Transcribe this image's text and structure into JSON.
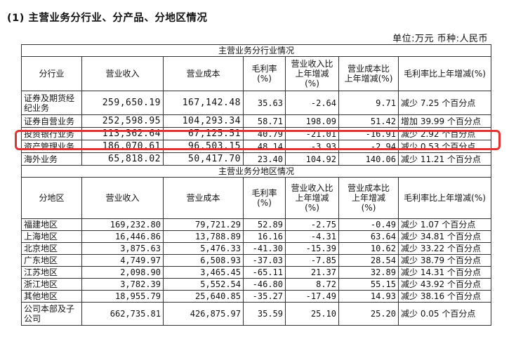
{
  "heading": "(1) 主营业务分行业、分产品、分地区情况",
  "unit_line": "单位:万元  币种:人民币",
  "industry": {
    "section_title": "主营业务分行业情况",
    "headers": [
      "分行业",
      "营业收入",
      "营业成本",
      "毛利率\n(%)",
      "营业收入比\n上年增减\n(%)",
      "营业成本比\n上年增减(%)",
      "毛利率比上年增减(%)"
    ],
    "rows": [
      [
        "证券及期货经纪业务",
        "259,650.19",
        "167,142.48",
        "35.63",
        "-2.64",
        "9.71",
        "减少 7.25 个百分点"
      ],
      [
        "证券自营业务",
        "252,598.95",
        "104,293.34",
        "58.71",
        "198.09",
        "51.42",
        "增加 39.99 个百分点"
      ],
      [
        "投资银行业务",
        "113,362.64",
        "67,125.51",
        "40.79",
        "-21.01",
        "-16.91",
        "减少 2.92 个百分点"
      ],
      [
        "资产管理业务",
        "186,070.61",
        "96,503.15",
        "48.14",
        "-3.93",
        "-2.94",
        "减少 0.53 个百分点"
      ],
      [
        "海外业务",
        "65,818.02",
        "50,417.70",
        "23.40",
        "104.92",
        "140.06",
        "减少 11.21 个百分点"
      ]
    ]
  },
  "region": {
    "section_title": "主营业务分地区情况",
    "headers": [
      "分地区",
      "营业收入",
      "营业成本",
      "毛利率\n(%)",
      "营业收入比\n上年增减\n(%)",
      "营业成本比\n上年增减\n(%)",
      "毛利率比上年增减(%)"
    ],
    "rows": [
      [
        "福建地区",
        "169,232.80",
        "79,721.29",
        "52.89",
        "-2.75",
        "-0.49",
        "减少 1.07 个百分点"
      ],
      [
        "上海地区",
        "16,446.86",
        "13,788.89",
        "16.16",
        "-4.31",
        "63.64",
        "减少 34.81 个百分点"
      ],
      [
        "北京地区",
        "3,875.63",
        "5,476.33",
        "-41.30",
        "-15.39",
        "10.62",
        "减少 33.22 个百分点"
      ],
      [
        "广东地区",
        "4,749.97",
        "6,508.93",
        "-37.03",
        "-7.85",
        "28.54",
        "减少 38.79 个百分点"
      ],
      [
        "江苏地区",
        "2,098.90",
        "3,465.45",
        "-65.11",
        "21.37",
        "32.89",
        "减少 14.31 个百分点"
      ],
      [
        "浙江地区",
        "3,782.39",
        "5,552.54",
        "-46.80",
        "8.72",
        "55.15",
        "减少 43.92 个百分点"
      ],
      [
        "其他地区",
        "18,955.79",
        "25,640.85",
        "-35.27",
        "-17.49",
        "14.93",
        "减少 38.16 个百分点"
      ],
      [
        "公司本部及子公司",
        "662,735.81",
        "426,875.97",
        "35.59",
        "25.10",
        "25.20",
        "减少 0.05 个百分点"
      ]
    ]
  },
  "highlighted_row": "投资银行业务",
  "colors": {
    "highlight_border": "#e03434",
    "grid": "#333333",
    "text": "#111111"
  }
}
